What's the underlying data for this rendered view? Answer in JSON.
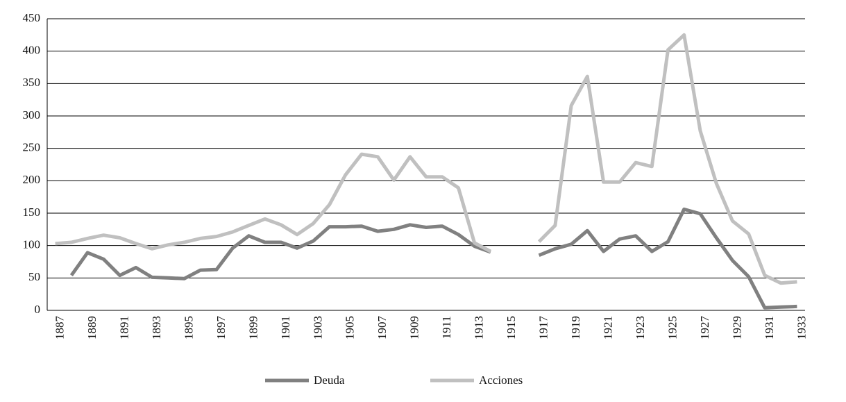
{
  "chart_data": {
    "type": "line",
    "categories": [
      "1887",
      null,
      "1889",
      null,
      "1891",
      null,
      "1893",
      null,
      "1895",
      null,
      "1897",
      null,
      "1899",
      null,
      "1901",
      null,
      "1903",
      null,
      "1905",
      null,
      "1907",
      null,
      "1909",
      null,
      "1911",
      null,
      "1913",
      null,
      "1915",
      null,
      "1917",
      null,
      "1919",
      null,
      "1921",
      null,
      "1923",
      null,
      "1925",
      null,
      "1927",
      null,
      "1929",
      null,
      "1931",
      null,
      "1933"
    ],
    "series": [
      {
        "name": "Deuda",
        "color": "#808080",
        "values": [
          null,
          54,
          89,
          79,
          54,
          66,
          51,
          50,
          49,
          62,
          63,
          96,
          115,
          105,
          105,
          96,
          107,
          129,
          129,
          130,
          122,
          125,
          132,
          128,
          130,
          117,
          99,
          90,
          null,
          null,
          85,
          95,
          102,
          123,
          91,
          110,
          115,
          91,
          106,
          156,
          149,
          112,
          77,
          52,
          4,
          5,
          6
        ]
      },
      {
        "name": "Acciones",
        "color": "#c0c0c0",
        "values": [
          103,
          105,
          111,
          116,
          112,
          103,
          95,
          101,
          105,
          111,
          114,
          121,
          131,
          141,
          132,
          117,
          134,
          163,
          209,
          241,
          237,
          201,
          237,
          206,
          206,
          189,
          104,
          91,
          null,
          null,
          106,
          131,
          316,
          361,
          198,
          198,
          228,
          222,
          402,
          425,
          277,
          196,
          138,
          118,
          54,
          42,
          44
        ]
      }
    ],
    "ylim": [
      0,
      450
    ],
    "yticks": [
      0,
      50,
      100,
      150,
      200,
      250,
      300,
      350,
      400,
      450
    ],
    "grid": true
  }
}
